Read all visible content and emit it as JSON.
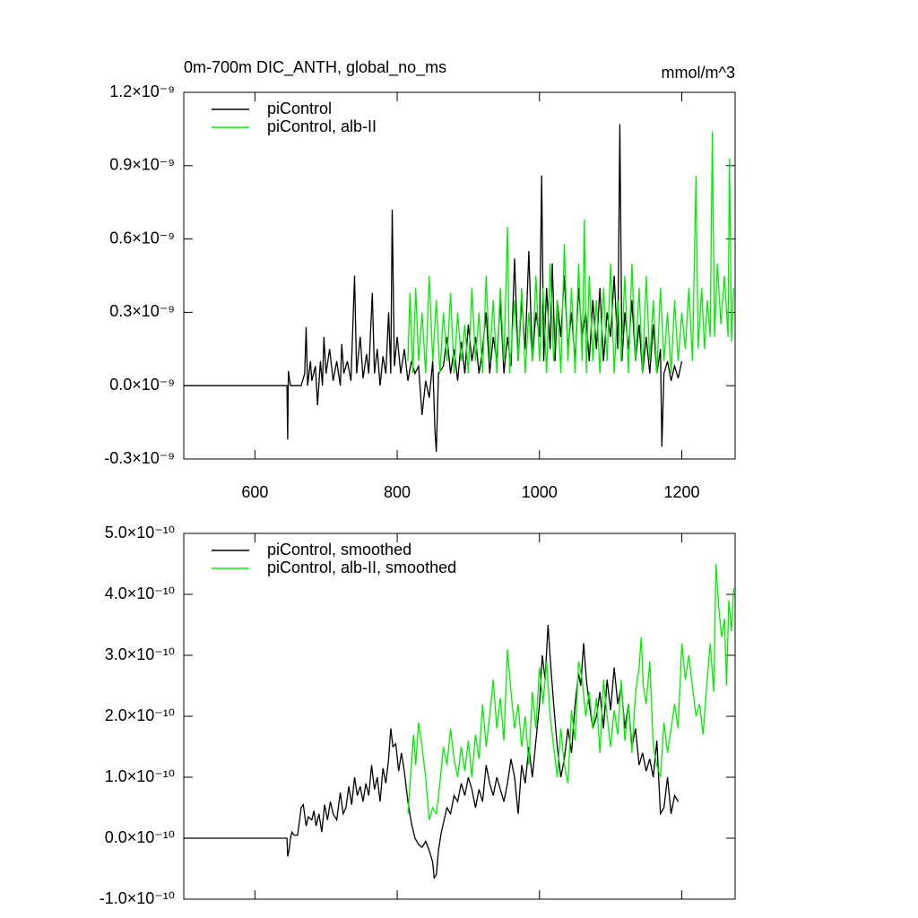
{
  "chart_data": [
    {
      "type": "line",
      "title": "0m-700m DIC_ANTH, global_no_ms",
      "annotation": "mmol/m^3",
      "xlim": [
        500,
        1275
      ],
      "xticks": [
        600,
        800,
        1000,
        1200
      ],
      "ylim": [
        -3e-10,
        1.2e-09
      ],
      "yticks": [
        {
          "value": -3e-10,
          "label": "-0.3×10⁻⁹"
        },
        {
          "value": 0,
          "label": "0.0×10⁻⁹"
        },
        {
          "value": 3e-10,
          "label": "0.3×10⁻⁹"
        },
        {
          "value": 6e-10,
          "label": "0.6×10⁻⁹"
        },
        {
          "value": 9e-10,
          "label": "0.9×10⁻⁹"
        },
        {
          "value": 1.2e-09,
          "label": "1.2×10⁻⁹"
        }
      ],
      "legend": "top-left",
      "series": [
        {
          "name": "piControl",
          "color": "#000000",
          "x": [
            500,
            640,
            645,
            646,
            647,
            650,
            665,
            670,
            672,
            674,
            678,
            680,
            685,
            688,
            692,
            695,
            697,
            700,
            705,
            710,
            715,
            720,
            722,
            725,
            730,
            735,
            740,
            743,
            748,
            752,
            757,
            760,
            765,
            768,
            772,
            776,
            780,
            784,
            788,
            791,
            793,
            796,
            800,
            805,
            810,
            815,
            820,
            825,
            830,
            835,
            840,
            845,
            850,
            853,
            855,
            858,
            865,
            870,
            875,
            880,
            885,
            890,
            895,
            900,
            905,
            910,
            915,
            920,
            925,
            930,
            935,
            940,
            945,
            950,
            955,
            960,
            965,
            970,
            975,
            980,
            985,
            990,
            995,
            1000,
            1003,
            1006,
            1010,
            1015,
            1018,
            1022,
            1025,
            1030,
            1035,
            1040,
            1045,
            1050,
            1055,
            1060,
            1065,
            1070,
            1075,
            1080,
            1085,
            1090,
            1095,
            1100,
            1105,
            1110,
            1113,
            1116,
            1120,
            1125,
            1130,
            1135,
            1140,
            1145,
            1150,
            1155,
            1160,
            1165,
            1170,
            1172,
            1175,
            1180,
            1185,
            1190,
            1195,
            1200
          ],
          "values": [
            0,
            0,
            0,
            -2.2e-10,
            6e-11,
            0,
            0,
            5e-11,
            2.4e-10,
            0,
            1e-10,
            2e-11,
            8e-11,
            -8e-11,
            1e-10,
            0,
            2e-10,
            5e-11,
            1.5e-10,
            2e-11,
            1e-10,
            0,
            1.7e-10,
            5e-11,
            1e-10,
            2e-11,
            4.5e-10,
            5e-11,
            2e-10,
            3e-11,
            1.3e-10,
            5e-11,
            3.8e-10,
            5e-11,
            1.5e-10,
            0,
            1.2e-10,
            5e-11,
            3e-10,
            5e-11,
            7.2e-10,
            8e-11,
            2e-10,
            5e-11,
            1.5e-10,
            2e-11,
            1e-10,
            5e-11,
            8e-11,
            -1.2e-10,
            2e-11,
            -5e-11,
            1e-10,
            -1.8e-10,
            -2.7e-10,
            5e-11,
            8e-11,
            2e-10,
            5e-11,
            1.5e-10,
            2e-11,
            1.8e-10,
            5e-11,
            2.5e-10,
            1e-10,
            2e-10,
            5e-11,
            1.5e-10,
            3e-10,
            5e-11,
            2e-10,
            1e-10,
            3.5e-10,
            5e-11,
            2e-10,
            8e-11,
            5.2e-10,
            1e-10,
            3.5e-10,
            1.5e-10,
            5.5e-10,
            1e-10,
            3e-10,
            2e-10,
            8.6e-10,
            1e-10,
            4e-10,
            1.5e-10,
            5e-10,
            1e-10,
            3.5e-10,
            2e-10,
            4.5e-10,
            1.5e-10,
            3e-10,
            1e-10,
            4e-10,
            2e-10,
            3e-10,
            1e-10,
            3.5e-10,
            1.5e-10,
            4e-10,
            1e-10,
            3e-10,
            2e-10,
            4.5e-10,
            1.5e-10,
            1.07e-09,
            1e-10,
            3e-10,
            1.5e-10,
            3.5e-10,
            1e-10,
            2.5e-10,
            5e-11,
            2e-10,
            5e-11,
            2.5e-10,
            5e-11,
            1.5e-10,
            -2.5e-10,
            5e-11,
            1e-10,
            2e-11,
            8e-11,
            3e-11,
            1e-10
          ]
        },
        {
          "name": "piControl, alb-II",
          "color": "#00ee00",
          "x": [
            815,
            818,
            822,
            826,
            830,
            835,
            840,
            845,
            850,
            855,
            860,
            865,
            870,
            875,
            880,
            885,
            890,
            895,
            900,
            905,
            910,
            915,
            920,
            925,
            930,
            935,
            940,
            945,
            950,
            955,
            958,
            965,
            970,
            975,
            980,
            985,
            990,
            995,
            1000,
            1005,
            1010,
            1015,
            1020,
            1025,
            1030,
            1035,
            1040,
            1045,
            1050,
            1055,
            1060,
            1063,
            1066,
            1070,
            1075,
            1080,
            1085,
            1090,
            1095,
            1100,
            1105,
            1110,
            1115,
            1120,
            1125,
            1130,
            1135,
            1140,
            1145,
            1150,
            1155,
            1160,
            1165,
            1170,
            1175,
            1180,
            1185,
            1190,
            1195,
            1200,
            1205,
            1210,
            1215,
            1220,
            1223,
            1228,
            1232,
            1236,
            1240,
            1243,
            1246,
            1250,
            1255,
            1260,
            1265,
            1267,
            1270,
            1273
          ],
          "values": [
            1e-10,
            3.8e-10,
            5e-11,
            4e-10,
            1e-10,
            3e-10,
            5e-11,
            4.5e-10,
            1e-10,
            3.5e-10,
            5e-11,
            3e-10,
            1e-10,
            3.8e-10,
            5e-11,
            3e-10,
            1e-10,
            2.5e-10,
            5e-11,
            4e-10,
            1e-10,
            3e-10,
            5e-11,
            4.5e-10,
            1e-10,
            3.5e-10,
            5e-11,
            4e-10,
            1e-10,
            6.5e-10,
            5e-11,
            3.5e-10,
            1e-10,
            4e-10,
            5e-11,
            3e-10,
            1e-10,
            4.5e-10,
            1e-10,
            4e-10,
            5e-11,
            5e-10,
            1e-10,
            3.5e-10,
            5e-11,
            5.8e-10,
            1e-10,
            4e-10,
            5e-11,
            5e-10,
            1e-10,
            6.8e-10,
            5e-11,
            4.5e-10,
            1e-10,
            3.5e-10,
            5e-11,
            4e-10,
            1e-10,
            5e-10,
            5e-11,
            3.5e-10,
            1e-10,
            4.5e-10,
            5e-11,
            5e-10,
            1e-10,
            4e-10,
            5e-11,
            4.5e-10,
            1e-10,
            3.5e-10,
            5e-11,
            4e-10,
            1e-10,
            3e-10,
            5e-11,
            3.5e-10,
            1e-10,
            3e-10,
            1.5e-10,
            4e-10,
            1e-10,
            8.6e-10,
            1.5e-10,
            4e-10,
            1.5e-10,
            3.5e-10,
            2e-10,
            1.04e-09,
            2e-10,
            5e-10,
            2.5e-10,
            4.5e-10,
            2e-10,
            9.3e-10,
            1.8e-10,
            4e-10
          ]
        }
      ]
    },
    {
      "type": "line",
      "xlim": [
        500,
        1275
      ],
      "xticks": [
        600,
        800,
        1000,
        1200
      ],
      "ylim": [
        -1e-10,
        5e-10
      ],
      "yticks": [
        {
          "value": -1e-10,
          "label": "-1.0×10⁻¹⁰"
        },
        {
          "value": 0,
          "label": "0.0×10⁻¹⁰"
        },
        {
          "value": 1e-10,
          "label": "1.0×10⁻¹⁰"
        },
        {
          "value": 2e-10,
          "label": "2.0×10⁻¹⁰"
        },
        {
          "value": 3e-10,
          "label": "3.0×10⁻¹⁰"
        },
        {
          "value": 4e-10,
          "label": "4.0×10⁻¹⁰"
        },
        {
          "value": 5e-10,
          "label": "5.0×10⁻¹⁰"
        }
      ],
      "legend": "top-left",
      "series": [
        {
          "name": "piControl, smoothed",
          "color": "#000000",
          "x": [
            500,
            645,
            646,
            648,
            650,
            652,
            655,
            660,
            665,
            668,
            672,
            675,
            680,
            683,
            686,
            690,
            694,
            698,
            702,
            706,
            710,
            715,
            720,
            724,
            728,
            732,
            736,
            740,
            744,
            748,
            752,
            756,
            760,
            764,
            768,
            772,
            776,
            780,
            784,
            788,
            791,
            794,
            798,
            802,
            806,
            810,
            815,
            820,
            825,
            830,
            835,
            840,
            845,
            850,
            852,
            855,
            858,
            862,
            866,
            870,
            875,
            880,
            885,
            890,
            895,
            900,
            905,
            910,
            915,
            920,
            925,
            930,
            935,
            940,
            945,
            950,
            955,
            960,
            965,
            970,
            975,
            980,
            985,
            990,
            995,
            1000,
            1004,
            1008,
            1012,
            1016,
            1020,
            1025,
            1030,
            1035,
            1040,
            1045,
            1050,
            1055,
            1058,
            1062,
            1066,
            1070,
            1075,
            1080,
            1085,
            1090,
            1095,
            1100,
            1105,
            1110,
            1115,
            1120,
            1125,
            1130,
            1135,
            1140,
            1145,
            1150,
            1155,
            1160,
            1165,
            1170,
            1175,
            1180,
            1185,
            1190,
            1195
          ],
          "values": [
            0,
            0,
            -3e-11,
            -2e-11,
            0,
            1e-11,
            5e-12,
            5e-12,
            5e-11,
            5.5e-11,
            2e-11,
            3.5e-11,
            3e-11,
            4.5e-11,
            2e-11,
            4e-11,
            1e-11,
            5.5e-11,
            3e-11,
            6e-11,
            4e-11,
            3e-11,
            7.5e-11,
            4e-11,
            5e-11,
            8.5e-11,
            5.5e-11,
            1e-10,
            7e-11,
            8.5e-11,
            6e-11,
            9e-11,
            7e-11,
            1.2e-10,
            8e-11,
            1e-10,
            6e-11,
            1.15e-10,
            9e-11,
            1.3e-10,
            1.8e-10,
            1.5e-10,
            1.55e-10,
            1.1e-10,
            1.4e-10,
            1.1e-10,
            6e-11,
            2.5e-11,
            0,
            -1e-11,
            -1.5e-11,
            -5e-12,
            -2e-11,
            -4e-11,
            -6.5e-11,
            -6e-11,
            -2e-11,
            1e-11,
            3e-11,
            5e-11,
            4e-11,
            7e-11,
            6e-11,
            9e-11,
            7e-11,
            1e-10,
            8e-11,
            5e-11,
            8e-11,
            6e-11,
            1.2e-10,
            9e-11,
            7e-11,
            1e-10,
            8e-11,
            6e-11,
            9e-11,
            1.3e-10,
            1e-10,
            4e-11,
            1.2e-10,
            9e-11,
            1.5e-10,
            1e-10,
            1.6e-10,
            2.2e-10,
            3e-10,
            2.6e-10,
            3.5e-10,
            2.8e-10,
            2.2e-10,
            1.5e-10,
            1e-10,
            1.3e-10,
            1.8e-10,
            1.4e-10,
            2.2e-10,
            2.7e-10,
            2.5e-10,
            3.2e-10,
            2.6e-10,
            2.2e-10,
            1.8e-10,
            2e-10,
            2.4e-10,
            1.8e-10,
            2.6e-10,
            2.1e-10,
            2.8e-10,
            2.2e-10,
            2.5e-10,
            1.8e-10,
            2.2e-10,
            1.5e-10,
            1.8e-10,
            1.2e-10,
            1.4e-10,
            1.1e-10,
            1.3e-10,
            1e-10,
            1.6e-10,
            4e-11,
            5e-11,
            1e-10,
            4e-11,
            7e-11,
            6e-11
          ]
        },
        {
          "name": "piControl, alb-II, smoothed",
          "color": "#00ee00",
          "x": [
            815,
            820,
            823,
            826,
            830,
            835,
            840,
            845,
            850,
            855,
            860,
            865,
            870,
            875,
            880,
            885,
            890,
            895,
            900,
            905,
            910,
            915,
            920,
            925,
            930,
            935,
            940,
            945,
            950,
            955,
            960,
            965,
            970,
            975,
            980,
            985,
            990,
            995,
            1000,
            1005,
            1010,
            1015,
            1020,
            1025,
            1030,
            1035,
            1040,
            1045,
            1050,
            1055,
            1060,
            1065,
            1070,
            1075,
            1080,
            1085,
            1090,
            1095,
            1100,
            1105,
            1110,
            1115,
            1120,
            1125,
            1130,
            1135,
            1140,
            1143,
            1146,
            1150,
            1155,
            1160,
            1165,
            1170,
            1175,
            1180,
            1185,
            1190,
            1195,
            1200,
            1205,
            1210,
            1215,
            1220,
            1225,
            1230,
            1235,
            1240,
            1245,
            1248,
            1252,
            1256,
            1260,
            1263,
            1266,
            1270,
            1273
          ],
          "values": [
            4e-11,
            1.2e-10,
            1.7e-10,
            1.2e-10,
            1.9e-10,
            1.5e-10,
            1e-10,
            3e-11,
            5e-11,
            4e-11,
            9e-11,
            1.5e-10,
            1.2e-10,
            1.8e-10,
            1.3e-10,
            1e-10,
            1.5e-10,
            1.1e-10,
            1.6e-10,
            1e-10,
            1.7e-10,
            1.3e-10,
            2.2e-10,
            1.5e-10,
            2e-10,
            2.6e-10,
            1.8e-10,
            2.3e-10,
            1.6e-10,
            3.1e-10,
            2.4e-10,
            1.8e-10,
            2.2e-10,
            1.5e-10,
            2e-10,
            1.2e-10,
            2.4e-10,
            1.8e-10,
            2.8e-10,
            2.2e-10,
            2.9e-10,
            2e-10,
            1.5e-10,
            1e-10,
            1.8e-10,
            1.2e-10,
            9e-11,
            2.1e-10,
            1.6e-10,
            2.9e-10,
            2.6e-10,
            2e-10,
            2.4e-10,
            1.8e-10,
            2.3e-10,
            1.4e-10,
            2.6e-10,
            2e-10,
            1.5e-10,
            2.1e-10,
            1.7e-10,
            2.6e-10,
            1.6e-10,
            2.2e-10,
            1.4e-10,
            2.4e-10,
            2.8e-10,
            3.3e-10,
            2.5e-10,
            2.2e-10,
            2.9e-10,
            1.5e-10,
            1.2e-10,
            1e-10,
            1.9e-10,
            1.4e-10,
            1.8e-10,
            2.2e-10,
            1.8e-10,
            3.2e-10,
            2.6e-10,
            3e-10,
            2.5e-10,
            2e-10,
            2.2e-10,
            1.7e-10,
            2.5e-10,
            3.2e-10,
            2.4e-10,
            4.5e-10,
            3.8e-10,
            3.3e-10,
            3.6e-10,
            2.5e-10,
            3.9e-10,
            3.4e-10,
            4.1e-10
          ]
        }
      ]
    }
  ]
}
